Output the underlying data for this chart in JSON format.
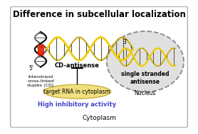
{
  "title": "Difference in subcellular localization",
  "title_fontsize": 8.5,
  "title_fontweight": "bold",
  "outer_box_color": "#aaaaaa",
  "cd_label": "CD-antisense",
  "interstrand_text": "Interstrand\ncross-linked\nduplex (CD)",
  "ss_label_text": "single stranded\nantisense",
  "nucleus_label": "Nucleus",
  "target_rna_text": "target RNA in cytoplasm",
  "inhibitory_text": "High inhibitory activity",
  "cytoplasm_text": "Cytoplasm",
  "label_color_blue": "#4444cc",
  "dna_yellow": "#f0cc00",
  "dna_yellow_dark": "#c8a800",
  "dna_black": "#111111",
  "dna_red": "#dd2200",
  "ellipse_color": "#f0e080",
  "ellipse_edge": "#c8b040",
  "nucleus_face": "#e0e0e0",
  "nucleus_edge": "#888888"
}
